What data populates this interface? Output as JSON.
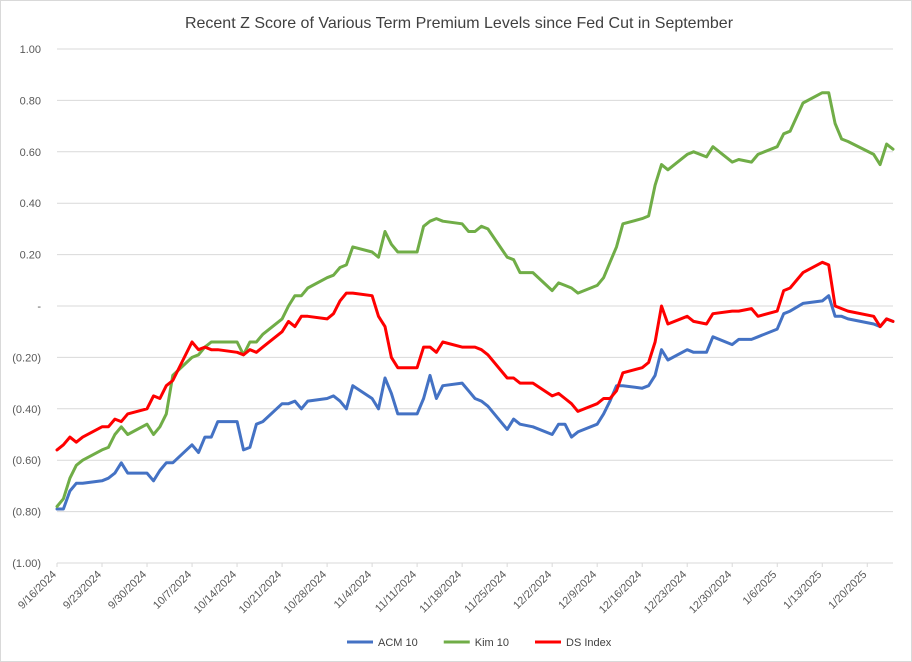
{
  "chart_data": {
    "type": "line",
    "title": "Recent Z Score of Various Term Premium Levels since Fed Cut in September",
    "xlabel": "",
    "ylabel": "",
    "ylim": [
      -1.0,
      1.0
    ],
    "grid": true,
    "legend_position": "bottom",
    "y_ticks": [
      "1.00",
      "0.80",
      "0.60",
      "0.40",
      "0.20",
      "-",
      "(0.20)",
      "(0.40)",
      "(0.60)",
      "(0.80)",
      "(1.00)"
    ],
    "x_ticks": [
      "9/16/2024",
      "9/23/2024",
      "9/30/2024",
      "10/7/2024",
      "10/14/2024",
      "10/21/2024",
      "10/28/2024",
      "11/4/2024",
      "11/11/2024",
      "11/18/2024",
      "11/25/2024",
      "12/2/2024",
      "12/9/2024",
      "12/16/2024",
      "12/23/2024",
      "12/30/2024",
      "1/6/2025",
      "1/13/2025",
      "1/20/2025"
    ],
    "x_range": [
      "9/16/2024",
      "1/24/2025"
    ],
    "series": [
      {
        "name": "ACM 10",
        "color": "#4472c4",
        "points": [
          [
            "9/16/2024",
            -0.79
          ],
          [
            "9/17/2024",
            -0.79
          ],
          [
            "9/18/2024",
            -0.72
          ],
          [
            "9/19/2024",
            -0.69
          ],
          [
            "9/20/2024",
            -0.69
          ],
          [
            "9/23/2024",
            -0.68
          ],
          [
            "9/24/2024",
            -0.67
          ],
          [
            "9/25/2024",
            -0.65
          ],
          [
            "9/26/2024",
            -0.61
          ],
          [
            "9/27/2024",
            -0.65
          ],
          [
            "9/30/2024",
            -0.65
          ],
          [
            "10/1/2024",
            -0.68
          ],
          [
            "10/2/2024",
            -0.64
          ],
          [
            "10/3/2024",
            -0.61
          ],
          [
            "10/4/2024",
            -0.61
          ],
          [
            "10/7/2024",
            -0.54
          ],
          [
            "10/8/2024",
            -0.57
          ],
          [
            "10/9/2024",
            -0.51
          ],
          [
            "10/10/2024",
            -0.51
          ],
          [
            "10/11/2024",
            -0.45
          ],
          [
            "10/14/2024",
            -0.45
          ],
          [
            "10/15/2024",
            -0.56
          ],
          [
            "10/16/2024",
            -0.55
          ],
          [
            "10/17/2024",
            -0.46
          ],
          [
            "10/18/2024",
            -0.45
          ],
          [
            "10/21/2024",
            -0.38
          ],
          [
            "10/22/2024",
            -0.38
          ],
          [
            "10/23/2024",
            -0.37
          ],
          [
            "10/24/2024",
            -0.4
          ],
          [
            "10/25/2024",
            -0.37
          ],
          [
            "10/28/2024",
            -0.36
          ],
          [
            "10/29/2024",
            -0.35
          ],
          [
            "10/30/2024",
            -0.37
          ],
          [
            "10/31/2024",
            -0.4
          ],
          [
            "11/1/2024",
            -0.31
          ],
          [
            "11/4/2024",
            -0.36
          ],
          [
            "11/5/2024",
            -0.4
          ],
          [
            "11/6/2024",
            -0.28
          ],
          [
            "11/7/2024",
            -0.34
          ],
          [
            "11/8/2024",
            -0.42
          ],
          [
            "11/11/2024",
            -0.42
          ],
          [
            "11/12/2024",
            -0.36
          ],
          [
            "11/13/2024",
            -0.27
          ],
          [
            "11/14/2024",
            -0.36
          ],
          [
            "11/15/2024",
            -0.31
          ],
          [
            "11/18/2024",
            -0.3
          ],
          [
            "11/19/2024",
            -0.33
          ],
          [
            "11/20/2024",
            -0.36
          ],
          [
            "11/21/2024",
            -0.37
          ],
          [
            "11/22/2024",
            -0.39
          ],
          [
            "11/25/2024",
            -0.48
          ],
          [
            "11/26/2024",
            -0.44
          ],
          [
            "11/27/2024",
            -0.46
          ],
          [
            "11/29/2024",
            -0.47
          ],
          [
            "12/2/2024",
            -0.5
          ],
          [
            "12/3/2024",
            -0.46
          ],
          [
            "12/4/2024",
            -0.46
          ],
          [
            "12/5/2024",
            -0.51
          ],
          [
            "12/6/2024",
            -0.49
          ],
          [
            "12/9/2024",
            -0.46
          ],
          [
            "12/10/2024",
            -0.42
          ],
          [
            "12/11/2024",
            -0.37
          ],
          [
            "12/12/2024",
            -0.31
          ],
          [
            "12/13/2024",
            -0.31
          ],
          [
            "12/16/2024",
            -0.32
          ],
          [
            "12/17/2024",
            -0.31
          ],
          [
            "12/18/2024",
            -0.27
          ],
          [
            "12/19/2024",
            -0.17
          ],
          [
            "12/20/2024",
            -0.21
          ],
          [
            "12/23/2024",
            -0.17
          ],
          [
            "12/24/2024",
            -0.18
          ],
          [
            "12/26/2024",
            -0.18
          ],
          [
            "12/27/2024",
            -0.12
          ],
          [
            "12/30/2024",
            -0.15
          ],
          [
            "12/31/2024",
            -0.13
          ],
          [
            "1/2/2025",
            -0.13
          ],
          [
            "1/3/2025",
            -0.12
          ],
          [
            "1/6/2025",
            -0.09
          ],
          [
            "1/7/2025",
            -0.03
          ],
          [
            "1/8/2025",
            -0.02
          ],
          [
            "1/10/2025",
            0.01
          ],
          [
            "1/13/2025",
            0.02
          ],
          [
            "1/14/2025",
            0.04
          ],
          [
            "1/15/2025",
            -0.04
          ],
          [
            "1/16/2025",
            -0.04
          ],
          [
            "1/17/2025",
            -0.05
          ],
          [
            "1/21/2025",
            -0.07
          ],
          [
            "1/22/2025",
            -0.08
          ],
          [
            "1/23/2025",
            -0.05
          ],
          [
            "1/24/2025",
            -0.06
          ]
        ]
      },
      {
        "name": "Kim 10",
        "color": "#70ad47",
        "points": [
          [
            "9/16/2024",
            -0.78
          ],
          [
            "9/17/2024",
            -0.75
          ],
          [
            "9/18/2024",
            -0.67
          ],
          [
            "9/19/2024",
            -0.62
          ],
          [
            "9/20/2024",
            -0.6
          ],
          [
            "9/23/2024",
            -0.56
          ],
          [
            "9/24/2024",
            -0.55
          ],
          [
            "9/25/2024",
            -0.5
          ],
          [
            "9/26/2024",
            -0.47
          ],
          [
            "9/27/2024",
            -0.5
          ],
          [
            "9/30/2024",
            -0.46
          ],
          [
            "10/1/2024",
            -0.5
          ],
          [
            "10/2/2024",
            -0.47
          ],
          [
            "10/3/2024",
            -0.42
          ],
          [
            "10/4/2024",
            -0.27
          ],
          [
            "10/7/2024",
            -0.2
          ],
          [
            "10/8/2024",
            -0.19
          ],
          [
            "10/9/2024",
            -0.16
          ],
          [
            "10/10/2024",
            -0.14
          ],
          [
            "10/11/2024",
            -0.14
          ],
          [
            "10/14/2024",
            -0.14
          ],
          [
            "10/15/2024",
            -0.19
          ],
          [
            "10/16/2024",
            -0.14
          ],
          [
            "10/17/2024",
            -0.14
          ],
          [
            "10/18/2024",
            -0.11
          ],
          [
            "10/21/2024",
            -0.05
          ],
          [
            "10/22/2024",
            0.0
          ],
          [
            "10/23/2024",
            0.04
          ],
          [
            "10/24/2024",
            0.04
          ],
          [
            "10/25/2024",
            0.07
          ],
          [
            "10/28/2024",
            0.11
          ],
          [
            "10/29/2024",
            0.12
          ],
          [
            "10/30/2024",
            0.15
          ],
          [
            "10/31/2024",
            0.16
          ],
          [
            "11/1/2024",
            0.23
          ],
          [
            "11/4/2024",
            0.21
          ],
          [
            "11/5/2024",
            0.19
          ],
          [
            "11/6/2024",
            0.29
          ],
          [
            "11/7/2024",
            0.24
          ],
          [
            "11/8/2024",
            0.21
          ],
          [
            "11/11/2024",
            0.21
          ],
          [
            "11/12/2024",
            0.31
          ],
          [
            "11/13/2024",
            0.33
          ],
          [
            "11/14/2024",
            0.34
          ],
          [
            "11/15/2024",
            0.33
          ],
          [
            "11/18/2024",
            0.32
          ],
          [
            "11/19/2024",
            0.29
          ],
          [
            "11/20/2024",
            0.29
          ],
          [
            "11/21/2024",
            0.31
          ],
          [
            "11/22/2024",
            0.3
          ],
          [
            "11/25/2024",
            0.19
          ],
          [
            "11/26/2024",
            0.18
          ],
          [
            "11/27/2024",
            0.13
          ],
          [
            "11/29/2024",
            0.13
          ],
          [
            "12/2/2024",
            0.06
          ],
          [
            "12/3/2024",
            0.09
          ],
          [
            "12/4/2024",
            0.08
          ],
          [
            "12/5/2024",
            0.07
          ],
          [
            "12/6/2024",
            0.05
          ],
          [
            "12/9/2024",
            0.08
          ],
          [
            "12/10/2024",
            0.11
          ],
          [
            "12/11/2024",
            0.17
          ],
          [
            "12/12/2024",
            0.23
          ],
          [
            "12/13/2024",
            0.32
          ],
          [
            "12/16/2024",
            0.34
          ],
          [
            "12/17/2024",
            0.35
          ],
          [
            "12/18/2024",
            0.47
          ],
          [
            "12/19/2024",
            0.55
          ],
          [
            "12/20/2024",
            0.53
          ],
          [
            "12/23/2024",
            0.59
          ],
          [
            "12/24/2024",
            0.6
          ],
          [
            "12/26/2024",
            0.58
          ],
          [
            "12/27/2024",
            0.62
          ],
          [
            "12/30/2024",
            0.56
          ],
          [
            "12/31/2024",
            0.57
          ],
          [
            "1/2/2025",
            0.56
          ],
          [
            "1/3/2025",
            0.59
          ],
          [
            "1/6/2025",
            0.62
          ],
          [
            "1/7/2025",
            0.67
          ],
          [
            "1/8/2025",
            0.68
          ],
          [
            "1/10/2025",
            0.79
          ],
          [
            "1/13/2025",
            0.83
          ],
          [
            "1/14/2025",
            0.83
          ],
          [
            "1/15/2025",
            0.71
          ],
          [
            "1/16/2025",
            0.65
          ],
          [
            "1/17/2025",
            0.64
          ],
          [
            "1/21/2025",
            0.59
          ],
          [
            "1/22/2025",
            0.55
          ],
          [
            "1/23/2025",
            0.63
          ],
          [
            "1/24/2025",
            0.61
          ]
        ]
      },
      {
        "name": "DS Index",
        "color": "#ff0000",
        "points": [
          [
            "9/16/2024",
            -0.56
          ],
          [
            "9/17/2024",
            -0.54
          ],
          [
            "9/18/2024",
            -0.51
          ],
          [
            "9/19/2024",
            -0.53
          ],
          [
            "9/20/2024",
            -0.51
          ],
          [
            "9/23/2024",
            -0.47
          ],
          [
            "9/24/2024",
            -0.47
          ],
          [
            "9/25/2024",
            -0.44
          ],
          [
            "9/26/2024",
            -0.45
          ],
          [
            "9/27/2024",
            -0.42
          ],
          [
            "9/30/2024",
            -0.4
          ],
          [
            "10/1/2024",
            -0.35
          ],
          [
            "10/2/2024",
            -0.36
          ],
          [
            "10/3/2024",
            -0.31
          ],
          [
            "10/4/2024",
            -0.29
          ],
          [
            "10/7/2024",
            -0.14
          ],
          [
            "10/8/2024",
            -0.17
          ],
          [
            "10/9/2024",
            -0.16
          ],
          [
            "10/10/2024",
            -0.17
          ],
          [
            "10/11/2024",
            -0.17
          ],
          [
            "10/14/2024",
            -0.18
          ],
          [
            "10/15/2024",
            -0.19
          ],
          [
            "10/16/2024",
            -0.17
          ],
          [
            "10/17/2024",
            -0.18
          ],
          [
            "10/18/2024",
            -0.16
          ],
          [
            "10/21/2024",
            -0.1
          ],
          [
            "10/22/2024",
            -0.06
          ],
          [
            "10/23/2024",
            -0.08
          ],
          [
            "10/24/2024",
            -0.04
          ],
          [
            "10/25/2024",
            -0.04
          ],
          [
            "10/28/2024",
            -0.05
          ],
          [
            "10/29/2024",
            -0.03
          ],
          [
            "10/30/2024",
            0.02
          ],
          [
            "10/31/2024",
            0.05
          ],
          [
            "11/1/2024",
            0.05
          ],
          [
            "11/4/2024",
            0.04
          ],
          [
            "11/5/2024",
            -0.04
          ],
          [
            "11/6/2024",
            -0.08
          ],
          [
            "11/7/2024",
            -0.2
          ],
          [
            "11/8/2024",
            -0.24
          ],
          [
            "11/11/2024",
            -0.24
          ],
          [
            "11/12/2024",
            -0.16
          ],
          [
            "11/13/2024",
            -0.16
          ],
          [
            "11/14/2024",
            -0.18
          ],
          [
            "11/15/2024",
            -0.14
          ],
          [
            "11/18/2024",
            -0.16
          ],
          [
            "11/19/2024",
            -0.16
          ],
          [
            "11/20/2024",
            -0.16
          ],
          [
            "11/21/2024",
            -0.17
          ],
          [
            "11/22/2024",
            -0.19
          ],
          [
            "11/25/2024",
            -0.28
          ],
          [
            "11/26/2024",
            -0.28
          ],
          [
            "11/27/2024",
            -0.3
          ],
          [
            "11/29/2024",
            -0.3
          ],
          [
            "12/2/2024",
            -0.35
          ],
          [
            "12/3/2024",
            -0.34
          ],
          [
            "12/4/2024",
            -0.36
          ],
          [
            "12/5/2024",
            -0.38
          ],
          [
            "12/6/2024",
            -0.41
          ],
          [
            "12/9/2024",
            -0.38
          ],
          [
            "12/10/2024",
            -0.36
          ],
          [
            "12/11/2024",
            -0.36
          ],
          [
            "12/12/2024",
            -0.33
          ],
          [
            "12/13/2024",
            -0.26
          ],
          [
            "12/16/2024",
            -0.24
          ],
          [
            "12/17/2024",
            -0.22
          ],
          [
            "12/18/2024",
            -0.14
          ],
          [
            "12/19/2024",
            0.0
          ],
          [
            "12/20/2024",
            -0.07
          ],
          [
            "12/23/2024",
            -0.04
          ],
          [
            "12/24/2024",
            -0.06
          ],
          [
            "12/26/2024",
            -0.07
          ],
          [
            "12/27/2024",
            -0.03
          ],
          [
            "12/30/2024",
            -0.02
          ],
          [
            "12/31/2024",
            -0.02
          ],
          [
            "1/2/2025",
            -0.01
          ],
          [
            "1/3/2025",
            -0.04
          ],
          [
            "1/6/2025",
            -0.02
          ],
          [
            "1/7/2025",
            0.06
          ],
          [
            "1/8/2025",
            0.07
          ],
          [
            "1/10/2025",
            0.13
          ],
          [
            "1/13/2025",
            0.17
          ],
          [
            "1/14/2025",
            0.16
          ],
          [
            "1/15/2025",
            0.0
          ],
          [
            "1/16/2025",
            -0.01
          ],
          [
            "1/17/2025",
            -0.02
          ],
          [
            "1/21/2025",
            -0.04
          ],
          [
            "1/22/2025",
            -0.08
          ],
          [
            "1/23/2025",
            -0.05
          ],
          [
            "1/24/2025",
            -0.06
          ]
        ]
      }
    ]
  }
}
